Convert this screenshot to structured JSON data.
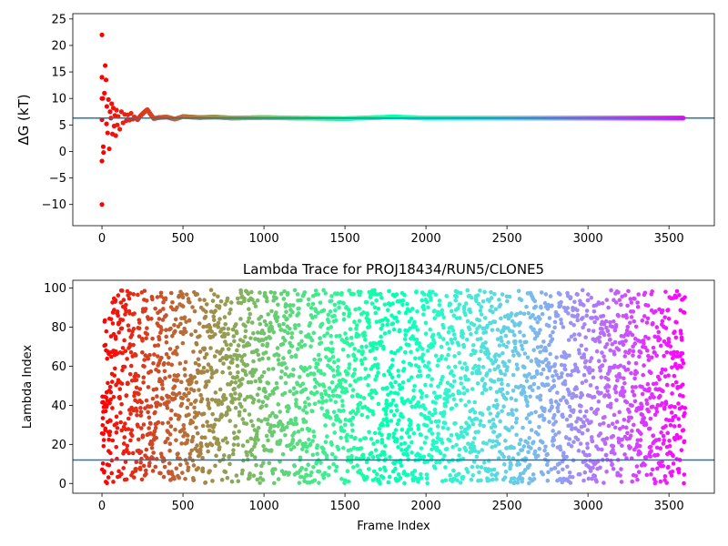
{
  "chart_data": [
    {
      "type": "scatter",
      "title": "",
      "xlabel": "",
      "ylabel": "ΔG (kT)",
      "xlim": [
        -180,
        3780
      ],
      "ylim": [
        -14,
        26
      ],
      "xticks": [
        0,
        500,
        1000,
        1500,
        2000,
        2500,
        3000,
        3500
      ],
      "yticks": [
        -10,
        -5,
        0,
        5,
        10,
        15,
        20,
        25
      ],
      "grid": false,
      "colormap": "rainbow",
      "reference_line": {
        "y": 6.3,
        "color": "#1f77b4"
      },
      "points": [
        [
          0,
          22.0
        ],
        [
          0,
          14.0
        ],
        [
          0,
          10.0
        ],
        [
          0,
          6.0
        ],
        [
          0,
          -1.8
        ],
        [
          0,
          -10.0
        ],
        [
          5,
          10.0
        ],
        [
          8,
          0.9
        ],
        [
          10,
          -0.2
        ],
        [
          15,
          11.0
        ],
        [
          20,
          16.2
        ],
        [
          25,
          13.5
        ],
        [
          28,
          5.2
        ],
        [
          30,
          8.5
        ],
        [
          35,
          3.5
        ],
        [
          40,
          9.8
        ],
        [
          45,
          0.5
        ],
        [
          50,
          7.5
        ],
        [
          55,
          6.3
        ],
        [
          60,
          9.0
        ],
        [
          65,
          3.3
        ],
        [
          70,
          8.2
        ],
        [
          75,
          4.8
        ],
        [
          80,
          6.8
        ],
        [
          85,
          3.0
        ],
        [
          90,
          7.8
        ],
        [
          95,
          5.0
        ],
        [
          100,
          6.6
        ],
        [
          110,
          4.2
        ],
        [
          120,
          7.5
        ],
        [
          130,
          5.4
        ],
        [
          140,
          7.0
        ],
        [
          150,
          5.8
        ],
        [
          160,
          6.9
        ],
        [
          170,
          5.9
        ],
        [
          180,
          7.2
        ],
        [
          190,
          6.1
        ],
        [
          200,
          6.5
        ],
        [
          220,
          6.0
        ],
        [
          240,
          6.8
        ],
        [
          260,
          7.4
        ],
        [
          280,
          7.9
        ],
        [
          300,
          7.0
        ],
        [
          320,
          6.2
        ],
        [
          350,
          6.4
        ],
        [
          400,
          6.5
        ],
        [
          450,
          6.1
        ],
        [
          500,
          6.6
        ],
        [
          600,
          6.4
        ],
        [
          700,
          6.5
        ],
        [
          800,
          6.3
        ],
        [
          1000,
          6.4
        ],
        [
          1200,
          6.3
        ],
        [
          1500,
          6.2
        ],
        [
          1800,
          6.5
        ],
        [
          2000,
          6.3
        ],
        [
          2500,
          6.3
        ],
        [
          3000,
          6.3
        ],
        [
          3580,
          6.3
        ]
      ]
    },
    {
      "type": "scatter",
      "title": "Lambda Trace for PROJ18434/RUN5/CLONE5",
      "xlabel": "Frame Index",
      "ylabel": "Lambda Index",
      "xlim": [
        -180,
        3780
      ],
      "ylim": [
        -5,
        104
      ],
      "xticks": [
        0,
        500,
        1000,
        1500,
        2000,
        2500,
        3000,
        3500
      ],
      "yticks": [
        0,
        20,
        40,
        60,
        80,
        100
      ],
      "grid": false,
      "colormap": "rainbow",
      "reference_line": {
        "y": 12,
        "color": "#1f77b4"
      },
      "x_range": [
        0,
        3600
      ],
      "lambda_range": [
        0,
        99
      ],
      "n_points": 3600
    }
  ]
}
